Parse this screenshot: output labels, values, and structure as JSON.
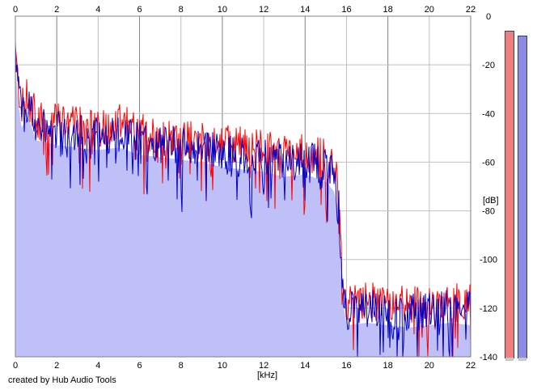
{
  "app_credit": "created by Hub Audio Tools",
  "chart_data": {
    "type": "area",
    "xlabel": "[kHz]",
    "ylabel": "[dB]",
    "xlim": [
      0,
      22
    ],
    "ylim": [
      -140,
      0
    ],
    "xticks": [
      0,
      2,
      4,
      6,
      8,
      10,
      12,
      14,
      16,
      18,
      20,
      22
    ],
    "yticks": [
      0,
      -20,
      -40,
      -60,
      -80,
      -100,
      -120,
      -140
    ],
    "grid": true,
    "colors": {
      "fill": "#c0c0f8",
      "left": "#ff0000",
      "right": "#0000c8",
      "grid": "#c0c0c0",
      "major_grid": "#808080"
    },
    "series": [
      {
        "channel": "left",
        "x": [
          0,
          0.1,
          0.3,
          0.6,
          1,
          2,
          3,
          4,
          5,
          6,
          7,
          8,
          9,
          10,
          11,
          12,
          13,
          14,
          15,
          15.4,
          15.6,
          15.8,
          16,
          17,
          18,
          19,
          20,
          21,
          22
        ],
        "values": [
          -15,
          -25,
          -38,
          -32,
          -42,
          -43,
          -45,
          -46,
          -44,
          -47,
          -49,
          -50,
          -51,
          -52,
          -53,
          -55,
          -57,
          -56,
          -58,
          -63,
          -70,
          -105,
          -118,
          -117,
          -118,
          -119,
          -118,
          -117,
          -118
        ]
      },
      {
        "channel": "right",
        "x": [
          0,
          0.1,
          0.3,
          0.6,
          1,
          2,
          3,
          4,
          5,
          6,
          7,
          8,
          9,
          10,
          11,
          12,
          13,
          14,
          15,
          15.4,
          15.6,
          15.8,
          16,
          17,
          18,
          19,
          20,
          21,
          22
        ],
        "values": [
          -12,
          -27,
          -40,
          -35,
          -45,
          -47,
          -48,
          -49,
          -48,
          -51,
          -52,
          -53,
          -54,
          -56,
          -57,
          -58,
          -60,
          -59,
          -62,
          -66,
          -73,
          -110,
          -121,
          -120,
          -121,
          -122,
          -121,
          -120,
          -121
        ]
      }
    ],
    "meters": {
      "left_level": 0.98,
      "right_level": 0.965
    }
  }
}
